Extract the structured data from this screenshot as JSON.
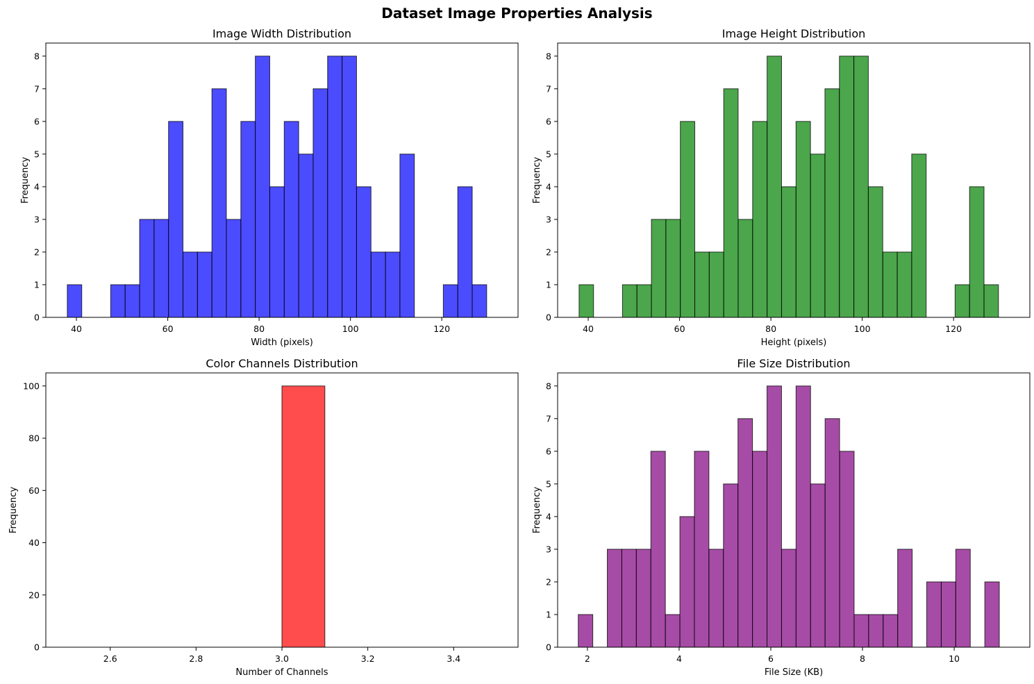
{
  "figure": {
    "suptitle": "Dataset Image Properties Analysis"
  },
  "chart_data": [
    {
      "type": "bar",
      "title": "Image Width Distribution",
      "xlabel": "Width (pixels)",
      "ylabel": "Frequency",
      "xlim": [
        33.3,
        136.7
      ],
      "ylim": [
        0,
        8.4
      ],
      "xticks": [
        40,
        60,
        80,
        100,
        120
      ],
      "yticks": [
        0,
        1,
        2,
        3,
        4,
        5,
        6,
        7,
        8
      ],
      "bin_start": 38.0,
      "bin_width": 3.1667,
      "values": [
        1,
        0,
        0,
        1,
        1,
        3,
        3,
        6,
        2,
        2,
        7,
        3,
        6,
        8,
        4,
        6,
        5,
        7,
        8,
        8,
        4,
        2,
        2,
        5,
        0,
        0,
        1,
        4,
        1
      ],
      "color": "#0000ff",
      "alpha": 0.7,
      "grid": false
    },
    {
      "type": "bar",
      "title": "Image Height Distribution",
      "xlabel": "Height (pixels)",
      "ylabel": "Frequency",
      "xlim": [
        33.3,
        136.7
      ],
      "ylim": [
        0,
        8.4
      ],
      "xticks": [
        40,
        60,
        80,
        100,
        120
      ],
      "yticks": [
        0,
        1,
        2,
        3,
        4,
        5,
        6,
        7,
        8
      ],
      "bin_start": 38.0,
      "bin_width": 3.1667,
      "values": [
        1,
        0,
        0,
        1,
        1,
        3,
        3,
        6,
        2,
        2,
        7,
        3,
        6,
        8,
        4,
        6,
        5,
        7,
        8,
        8,
        4,
        2,
        2,
        5,
        0,
        0,
        1,
        4,
        1
      ],
      "color": "#008000",
      "alpha": 0.7,
      "grid": false
    },
    {
      "type": "bar",
      "title": "Color Channels Distribution",
      "xlabel": "Number of Channels",
      "ylabel": "Frequency",
      "xlim": [
        2.45,
        3.55
      ],
      "ylim": [
        0,
        105
      ],
      "xticks": [
        2.6,
        2.8,
        3.0,
        3.2,
        3.4
      ],
      "xtick_labels": [
        "2.6",
        "2.8",
        "3.0",
        "3.2",
        "3.4"
      ],
      "yticks": [
        0,
        20,
        40,
        60,
        80,
        100
      ],
      "bin_start": 3.0,
      "bin_width": 0.1,
      "values": [
        100
      ],
      "color": "#ff0000",
      "alpha": 0.7,
      "grid": false
    },
    {
      "type": "bar",
      "title": "File Size Distribution",
      "xlabel": "File Size (KB)",
      "ylabel": "Frequency",
      "xlim": [
        1.35,
        11.65
      ],
      "ylim": [
        0,
        8.4
      ],
      "xticks": [
        2,
        4,
        6,
        8,
        10
      ],
      "yticks": [
        0,
        1,
        2,
        3,
        4,
        5,
        6,
        7,
        8
      ],
      "bin_start": 1.8,
      "bin_width": 0.3167,
      "values": [
        1,
        0,
        3,
        3,
        3,
        6,
        1,
        4,
        6,
        3,
        5,
        7,
        6,
        8,
        3,
        8,
        5,
        7,
        6,
        1,
        1,
        1,
        3,
        0,
        2,
        2,
        3,
        0,
        2
      ],
      "color": "#800080",
      "alpha": 0.7,
      "grid": false
    }
  ]
}
